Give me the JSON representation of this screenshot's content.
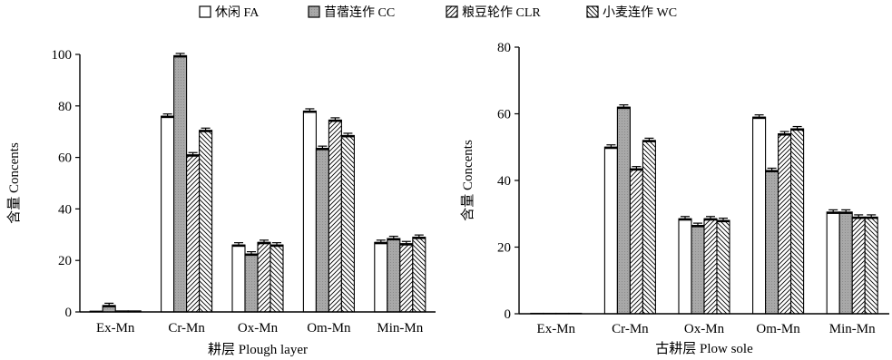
{
  "legend": {
    "placement": "top-center",
    "items": [
      {
        "label": "休闲 FA",
        "pattern": "white"
      },
      {
        "label": "苜蓿连作 CC",
        "pattern": "gray"
      },
      {
        "label": "粮豆轮作 CLR",
        "pattern": "diagonal-forward"
      },
      {
        "label": "小麦连作 WC",
        "pattern": "diagonal-backward"
      }
    ]
  },
  "colors": {
    "gray_fill": "#a8a8a8",
    "outline": "#000000",
    "background": "#ffffff"
  },
  "chart_data": [
    {
      "type": "bar",
      "xlabel": "耕层 Plough layer",
      "ylabel": "含量 Concents",
      "ylim": [
        0,
        100
      ],
      "yticks": [
        0,
        20,
        40,
        60,
        80,
        100
      ],
      "grid": false,
      "categories": [
        "Ex-Mn",
        "Cr-Mn",
        "Ox-Mn",
        "Om-Mn",
        "Min-Mn"
      ],
      "series": [
        {
          "name": "休闲 FA",
          "values": [
            0.3,
            76,
            26,
            78,
            27
          ]
        },
        {
          "name": "苜蓿连作 CC",
          "values": [
            2.5,
            99.5,
            22.5,
            63.5,
            28.5
          ]
        },
        {
          "name": "粮豆轮作 CLR",
          "values": [
            0.4,
            61,
            27,
            74.5,
            26.5
          ]
        },
        {
          "name": "小麦连作 WC",
          "values": [
            0.4,
            70.5,
            26,
            68.5,
            29
          ]
        }
      ]
    },
    {
      "type": "bar",
      "xlabel": "古耕层 Plow sole",
      "ylabel": "含量 Concents",
      "ylim": [
        0,
        80
      ],
      "yticks": [
        0,
        20,
        40,
        60,
        80
      ],
      "grid": false,
      "categories": [
        "Ex-Mn",
        "Cr-Mn",
        "Ox-Mn",
        "Om-Mn",
        "Min-Mn"
      ],
      "series": [
        {
          "name": "休闲 FA",
          "values": [
            0.1,
            50,
            28.5,
            59,
            30.5
          ]
        },
        {
          "name": "苜蓿连作 CC",
          "values": [
            0.1,
            62,
            26.5,
            43,
            30.5
          ]
        },
        {
          "name": "粮豆轮作 CLR",
          "values": [
            0.1,
            43.5,
            28.5,
            54,
            29
          ]
        },
        {
          "name": "小麦连作 WC",
          "values": [
            0.1,
            52,
            28,
            55.5,
            29
          ]
        }
      ]
    }
  ]
}
